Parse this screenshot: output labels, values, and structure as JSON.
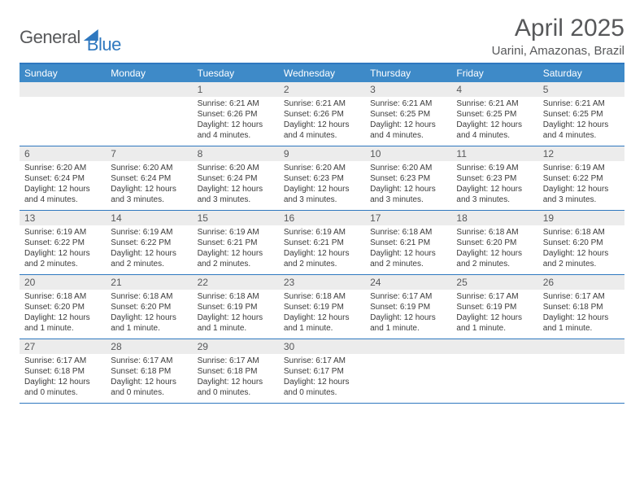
{
  "logo": {
    "part1": "General",
    "part2": "Blue"
  },
  "title": "April 2025",
  "subtitle": "Uarini, Amazonas, Brazil",
  "colors": {
    "header_bg": "#3e8ac8",
    "border": "#2f78bf",
    "daynum_bg": "#ececec",
    "text_gray": "#57585a"
  },
  "day_headers": [
    "Sunday",
    "Monday",
    "Tuesday",
    "Wednesday",
    "Thursday",
    "Friday",
    "Saturday"
  ],
  "weeks": [
    [
      {
        "n": "",
        "sunrise": "",
        "sunset": "",
        "daylight": ""
      },
      {
        "n": "",
        "sunrise": "",
        "sunset": "",
        "daylight": ""
      },
      {
        "n": "1",
        "sunrise": "Sunrise: 6:21 AM",
        "sunset": "Sunset: 6:26 PM",
        "daylight": "Daylight: 12 hours and 4 minutes."
      },
      {
        "n": "2",
        "sunrise": "Sunrise: 6:21 AM",
        "sunset": "Sunset: 6:26 PM",
        "daylight": "Daylight: 12 hours and 4 minutes."
      },
      {
        "n": "3",
        "sunrise": "Sunrise: 6:21 AM",
        "sunset": "Sunset: 6:25 PM",
        "daylight": "Daylight: 12 hours and 4 minutes."
      },
      {
        "n": "4",
        "sunrise": "Sunrise: 6:21 AM",
        "sunset": "Sunset: 6:25 PM",
        "daylight": "Daylight: 12 hours and 4 minutes."
      },
      {
        "n": "5",
        "sunrise": "Sunrise: 6:21 AM",
        "sunset": "Sunset: 6:25 PM",
        "daylight": "Daylight: 12 hours and 4 minutes."
      }
    ],
    [
      {
        "n": "6",
        "sunrise": "Sunrise: 6:20 AM",
        "sunset": "Sunset: 6:24 PM",
        "daylight": "Daylight: 12 hours and 4 minutes."
      },
      {
        "n": "7",
        "sunrise": "Sunrise: 6:20 AM",
        "sunset": "Sunset: 6:24 PM",
        "daylight": "Daylight: 12 hours and 3 minutes."
      },
      {
        "n": "8",
        "sunrise": "Sunrise: 6:20 AM",
        "sunset": "Sunset: 6:24 PM",
        "daylight": "Daylight: 12 hours and 3 minutes."
      },
      {
        "n": "9",
        "sunrise": "Sunrise: 6:20 AM",
        "sunset": "Sunset: 6:23 PM",
        "daylight": "Daylight: 12 hours and 3 minutes."
      },
      {
        "n": "10",
        "sunrise": "Sunrise: 6:20 AM",
        "sunset": "Sunset: 6:23 PM",
        "daylight": "Daylight: 12 hours and 3 minutes."
      },
      {
        "n": "11",
        "sunrise": "Sunrise: 6:19 AM",
        "sunset": "Sunset: 6:23 PM",
        "daylight": "Daylight: 12 hours and 3 minutes."
      },
      {
        "n": "12",
        "sunrise": "Sunrise: 6:19 AM",
        "sunset": "Sunset: 6:22 PM",
        "daylight": "Daylight: 12 hours and 3 minutes."
      }
    ],
    [
      {
        "n": "13",
        "sunrise": "Sunrise: 6:19 AM",
        "sunset": "Sunset: 6:22 PM",
        "daylight": "Daylight: 12 hours and 2 minutes."
      },
      {
        "n": "14",
        "sunrise": "Sunrise: 6:19 AM",
        "sunset": "Sunset: 6:22 PM",
        "daylight": "Daylight: 12 hours and 2 minutes."
      },
      {
        "n": "15",
        "sunrise": "Sunrise: 6:19 AM",
        "sunset": "Sunset: 6:21 PM",
        "daylight": "Daylight: 12 hours and 2 minutes."
      },
      {
        "n": "16",
        "sunrise": "Sunrise: 6:19 AM",
        "sunset": "Sunset: 6:21 PM",
        "daylight": "Daylight: 12 hours and 2 minutes."
      },
      {
        "n": "17",
        "sunrise": "Sunrise: 6:18 AM",
        "sunset": "Sunset: 6:21 PM",
        "daylight": "Daylight: 12 hours and 2 minutes."
      },
      {
        "n": "18",
        "sunrise": "Sunrise: 6:18 AM",
        "sunset": "Sunset: 6:20 PM",
        "daylight": "Daylight: 12 hours and 2 minutes."
      },
      {
        "n": "19",
        "sunrise": "Sunrise: 6:18 AM",
        "sunset": "Sunset: 6:20 PM",
        "daylight": "Daylight: 12 hours and 2 minutes."
      }
    ],
    [
      {
        "n": "20",
        "sunrise": "Sunrise: 6:18 AM",
        "sunset": "Sunset: 6:20 PM",
        "daylight": "Daylight: 12 hours and 1 minute."
      },
      {
        "n": "21",
        "sunrise": "Sunrise: 6:18 AM",
        "sunset": "Sunset: 6:20 PM",
        "daylight": "Daylight: 12 hours and 1 minute."
      },
      {
        "n": "22",
        "sunrise": "Sunrise: 6:18 AM",
        "sunset": "Sunset: 6:19 PM",
        "daylight": "Daylight: 12 hours and 1 minute."
      },
      {
        "n": "23",
        "sunrise": "Sunrise: 6:18 AM",
        "sunset": "Sunset: 6:19 PM",
        "daylight": "Daylight: 12 hours and 1 minute."
      },
      {
        "n": "24",
        "sunrise": "Sunrise: 6:17 AM",
        "sunset": "Sunset: 6:19 PM",
        "daylight": "Daylight: 12 hours and 1 minute."
      },
      {
        "n": "25",
        "sunrise": "Sunrise: 6:17 AM",
        "sunset": "Sunset: 6:19 PM",
        "daylight": "Daylight: 12 hours and 1 minute."
      },
      {
        "n": "26",
        "sunrise": "Sunrise: 6:17 AM",
        "sunset": "Sunset: 6:18 PM",
        "daylight": "Daylight: 12 hours and 1 minute."
      }
    ],
    [
      {
        "n": "27",
        "sunrise": "Sunrise: 6:17 AM",
        "sunset": "Sunset: 6:18 PM",
        "daylight": "Daylight: 12 hours and 0 minutes."
      },
      {
        "n": "28",
        "sunrise": "Sunrise: 6:17 AM",
        "sunset": "Sunset: 6:18 PM",
        "daylight": "Daylight: 12 hours and 0 minutes."
      },
      {
        "n": "29",
        "sunrise": "Sunrise: 6:17 AM",
        "sunset": "Sunset: 6:18 PM",
        "daylight": "Daylight: 12 hours and 0 minutes."
      },
      {
        "n": "30",
        "sunrise": "Sunrise: 6:17 AM",
        "sunset": "Sunset: 6:17 PM",
        "daylight": "Daylight: 12 hours and 0 minutes."
      },
      {
        "n": "",
        "sunrise": "",
        "sunset": "",
        "daylight": ""
      },
      {
        "n": "",
        "sunrise": "",
        "sunset": "",
        "daylight": ""
      },
      {
        "n": "",
        "sunrise": "",
        "sunset": "",
        "daylight": ""
      }
    ]
  ]
}
